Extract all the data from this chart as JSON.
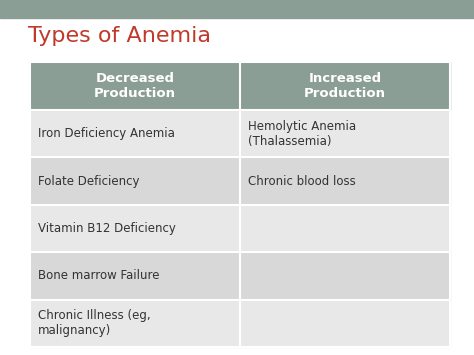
{
  "title": "Types of Anemia",
  "title_color": "#C0392B",
  "title_fontsize": 16,
  "bg_color": "#FFFFFF",
  "top_bar_color": "#8A9E96",
  "header_bg_color": "#8A9E96",
  "header_text_color": "#FFFFFF",
  "header_fontsize": 9.5,
  "header_fontweight": "bold",
  "cell_bg_light": "#E8E8E8",
  "cell_bg_dark": "#D8D8D8",
  "cell_text_color": "#333333",
  "cell_fontsize": 8.5,
  "headers": [
    "Decreased\nProduction",
    "Increased\nProduction"
  ],
  "rows": [
    [
      "Iron Deficiency Anemia",
      "Hemolytic Anemia\n(Thalassemia)"
    ],
    [
      "Folate Deficiency",
      "Chronic blood loss"
    ],
    [
      "Vitamin B12 Deficiency",
      ""
    ],
    [
      "Bone marrow Failure",
      ""
    ],
    [
      "Chronic Illness (eg,\nmalignancy)",
      ""
    ]
  ]
}
